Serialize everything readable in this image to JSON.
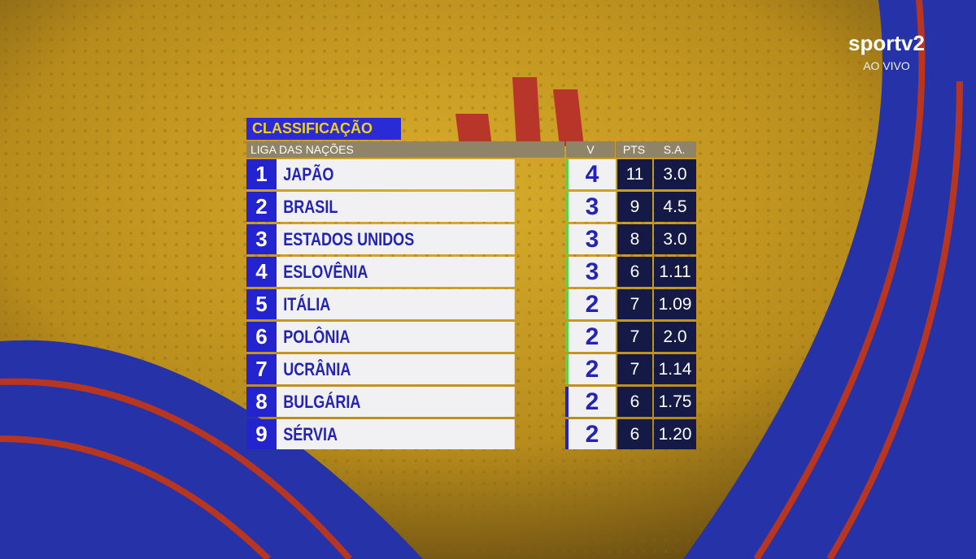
{
  "logo": {
    "channel": "sportv2",
    "status": "AO VIVO"
  },
  "header": {
    "badge": "CLASSIFICAÇÃO",
    "title": "LIGA DAS NAÇÕES"
  },
  "table": {
    "columns": [
      "V",
      "PTS",
      "S.A."
    ],
    "rows": [
      [
        "1",
        "JAPÃO",
        "4",
        "11",
        "3.0"
      ],
      [
        "2",
        "BRASIL",
        "3",
        "9",
        "4.5"
      ],
      [
        "3",
        "ESTADOS UNIDOS",
        "3",
        "8",
        "3.0"
      ],
      [
        "4",
        "ESLOVÊNIA",
        "3",
        "6",
        "1.11"
      ],
      [
        "5",
        "ITÁLIA",
        "2",
        "7",
        "1.09"
      ],
      [
        "6",
        "POLÔNIA",
        "2",
        "7",
        "2.0"
      ],
      [
        "7",
        "UCRÂNIA",
        "2",
        "7",
        "1.14"
      ],
      [
        "8",
        "BULGÁRIA",
        "2",
        "6",
        "1.75"
      ],
      [
        "9",
        "SÉRVIA",
        "2",
        "6",
        "1.20"
      ]
    ],
    "zone_colors": [
      "#5fd14a",
      "#5fd14a",
      "#5fd14a",
      "#5fd14a",
      "#5fd14a",
      "#5fd14a",
      "#5fd14a",
      "#2222cc",
      "#2222cc"
    ]
  }
}
